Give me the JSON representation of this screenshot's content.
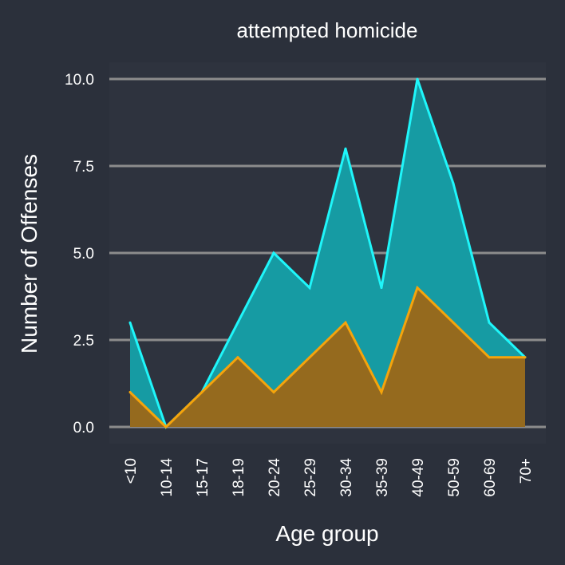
{
  "chart_data": {
    "type": "area",
    "title": "attempted homicide",
    "xlabel": "Age group",
    "ylabel": "Number of Offenses",
    "categories": [
      "<10",
      "10-14",
      "15-17",
      "18-19",
      "20-24",
      "25-29",
      "30-34",
      "35-39",
      "40-49",
      "50-59",
      "60-69",
      "70+"
    ],
    "series": [
      {
        "values": [
          3,
          0,
          1,
          3,
          5,
          4,
          8,
          4,
          10,
          7,
          3,
          2
        ],
        "line_color": "#1ff6fa",
        "fill_color": "#169ba3"
      },
      {
        "values": [
          1,
          0,
          1,
          2,
          1,
          2,
          3,
          1,
          4,
          3,
          2,
          2
        ],
        "line_color": "#f5a40b",
        "fill_color": "#956a1e"
      }
    ],
    "stacked": false,
    "yticks": [
      "0.0",
      "2.5",
      "5.0",
      "7.5",
      "10.0"
    ],
    "ylim": [
      0,
      10
    ],
    "grid": true,
    "background_color": "#2b303b",
    "panel_color": "#2e333e",
    "grid_color": "#8c8c8c"
  }
}
